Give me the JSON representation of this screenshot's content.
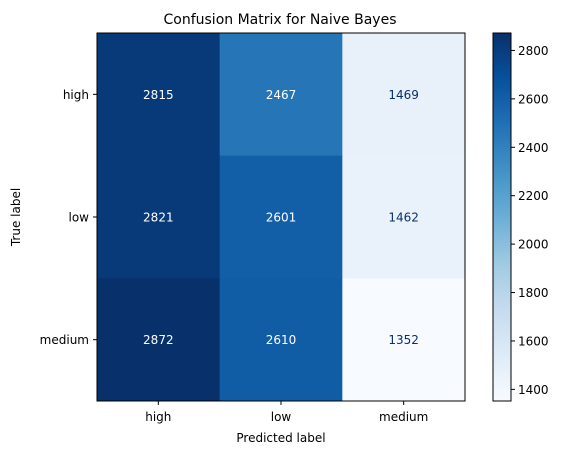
{
  "chart_data": {
    "type": "heatmap",
    "title": "Confusion Matrix for Naive Bayes",
    "xlabel": "Predicted label",
    "ylabel": "True label",
    "x_categories": [
      "high",
      "low",
      "medium"
    ],
    "y_categories": [
      "high",
      "low",
      "medium"
    ],
    "values": [
      [
        2815,
        2467,
        1469
      ],
      [
        2821,
        2601,
        1462
      ],
      [
        2872,
        2610,
        1352
      ]
    ],
    "colormap": "Blues",
    "colorbar": {
      "min": 1352,
      "max": 2872,
      "ticks": [
        1400,
        1600,
        1800,
        2000,
        2200,
        2400,
        2600,
        2800
      ]
    },
    "text_color_dark": "#08306b",
    "text_color_light": "#ffffff"
  }
}
